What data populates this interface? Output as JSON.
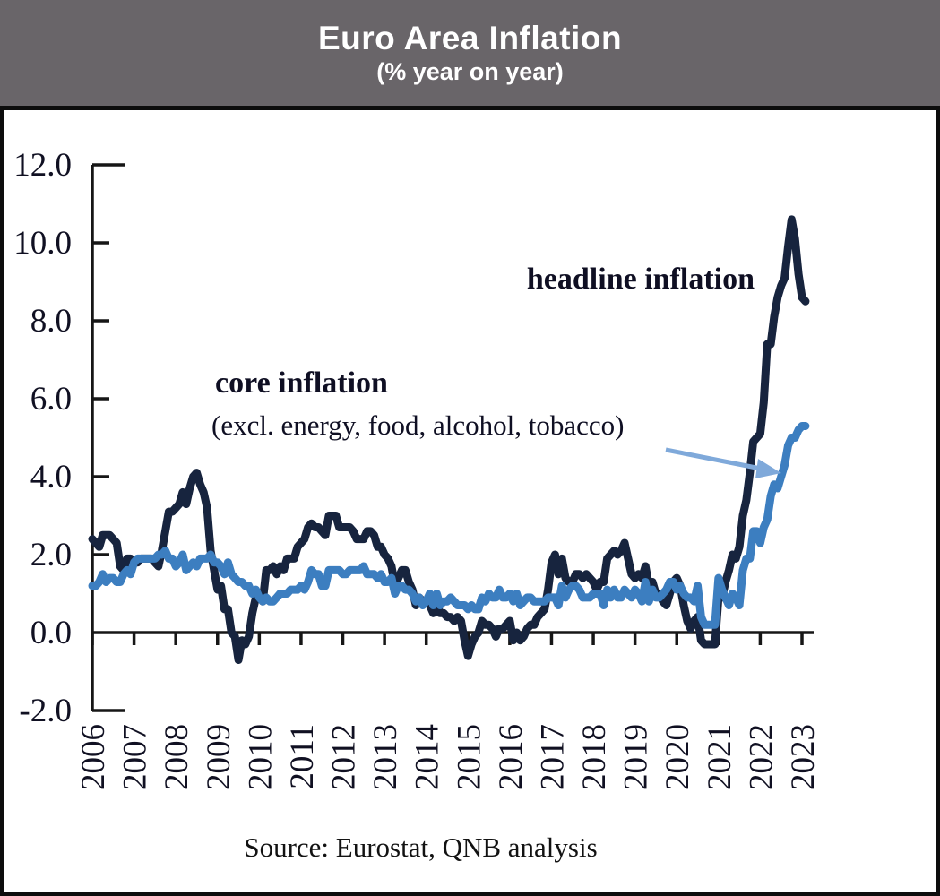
{
  "header": {
    "title": "Euro Area Inflation",
    "subtitle": "(% year on year)"
  },
  "source": "Source: Eurostat, QNB analysis",
  "colors": {
    "header_bg": "#696569",
    "header_text": "#ffffff",
    "frame_border": "#0d0d0d",
    "axis": "#161616",
    "headline": "#17243e",
    "core": "#3c7ec0",
    "arrow": "#7fa9da",
    "label_text": "#101022"
  },
  "chart_data": {
    "type": "line",
    "title": "Euro Area Inflation",
    "subtitle": "(% year on year)",
    "x_unit": "month",
    "x_start": "2006-01",
    "x_end": "2023-02",
    "x_tick_labels": [
      "2006",
      "2007",
      "2008",
      "2009",
      "2010",
      "2011",
      "2012",
      "2013",
      "2014",
      "2015",
      "2016",
      "2017",
      "2018",
      "2019",
      "2020",
      "2021",
      "2022",
      "2023"
    ],
    "y_ticks": [
      12.0,
      10.0,
      8.0,
      6.0,
      4.0,
      2.0,
      0.0,
      -2.0
    ],
    "y_tick_labels": [
      "12.0",
      "10.0",
      "8.0",
      "6.0",
      "4.0",
      "2.0",
      "0.0",
      "-2.0"
    ],
    "ylim": [
      -2.0,
      12.0
    ],
    "grid": false,
    "legend_position": "in-plot-annotations",
    "series": [
      {
        "name": "headline inflation",
        "color": "#17243e",
        "values": [
          2.4,
          2.3,
          2.2,
          2.5,
          2.5,
          2.5,
          2.4,
          2.3,
          1.7,
          1.6,
          1.9,
          1.9,
          1.8,
          1.8,
          1.9,
          1.9,
          1.9,
          1.9,
          1.8,
          1.7,
          2.1,
          2.6,
          3.1,
          3.1,
          3.2,
          3.3,
          3.6,
          3.3,
          3.7,
          4.0,
          4.1,
          3.8,
          3.6,
          3.2,
          2.1,
          1.6,
          1.1,
          1.2,
          0.6,
          0.6,
          0.0,
          -0.1,
          -0.7,
          -0.2,
          -0.3,
          -0.1,
          0.5,
          0.9,
          1.0,
          0.8,
          1.6,
          1.6,
          1.7,
          1.5,
          1.7,
          1.6,
          1.9,
          1.9,
          1.9,
          2.2,
          2.3,
          2.4,
          2.7,
          2.8,
          2.7,
          2.7,
          2.6,
          2.5,
          3.0,
          3.0,
          3.0,
          2.7,
          2.7,
          2.7,
          2.7,
          2.6,
          2.4,
          2.4,
          2.4,
          2.6,
          2.6,
          2.5,
          2.2,
          2.2,
          2.0,
          1.9,
          1.7,
          1.2,
          1.4,
          1.6,
          1.6,
          1.3,
          1.1,
          0.7,
          0.9,
          0.8,
          0.8,
          0.7,
          0.5,
          0.7,
          0.5,
          0.5,
          0.4,
          0.4,
          0.3,
          0.4,
          0.3,
          -0.2,
          -0.6,
          -0.3,
          -0.1,
          0.0,
          0.3,
          0.2,
          0.2,
          0.1,
          -0.1,
          0.1,
          0.1,
          0.2,
          0.3,
          -0.2,
          0.0,
          -0.2,
          -0.1,
          0.1,
          0.2,
          0.2,
          0.4,
          0.5,
          0.6,
          1.1,
          1.8,
          2.0,
          1.5,
          1.9,
          1.4,
          1.3,
          1.3,
          1.5,
          1.5,
          1.4,
          1.5,
          1.4,
          1.3,
          1.1,
          1.3,
          1.3,
          1.9,
          2.0,
          2.1,
          2.0,
          2.1,
          2.3,
          1.9,
          1.5,
          1.4,
          1.5,
          1.4,
          1.7,
          1.2,
          1.3,
          1.0,
          1.0,
          0.8,
          0.7,
          1.0,
          1.3,
          1.4,
          1.2,
          0.7,
          0.3,
          0.1,
          0.3,
          0.4,
          -0.2,
          -0.3,
          -0.3,
          -0.3,
          -0.3,
          0.9,
          0.9,
          1.3,
          1.6,
          2.0,
          1.9,
          2.2,
          3.0,
          3.4,
          4.1,
          4.9,
          5.0,
          5.1,
          5.9,
          7.4,
          7.4,
          8.1,
          8.6,
          8.9,
          9.1,
          9.9,
          10.6,
          10.1,
          9.2,
          8.6,
          8.5
        ]
      },
      {
        "name": "core inflation (excl. energy, food, alcohol, tobacco)",
        "color": "#3c7ec0",
        "values": [
          1.2,
          1.2,
          1.3,
          1.5,
          1.3,
          1.4,
          1.4,
          1.3,
          1.3,
          1.5,
          1.6,
          1.5,
          1.8,
          1.9,
          1.9,
          1.9,
          1.9,
          1.9,
          1.9,
          2.0,
          2.0,
          2.1,
          1.9,
          1.9,
          1.7,
          1.8,
          2.0,
          1.6,
          1.7,
          1.8,
          1.7,
          1.9,
          1.9,
          1.9,
          2.0,
          1.8,
          1.8,
          1.7,
          1.5,
          1.8,
          1.5,
          1.4,
          1.3,
          1.3,
          1.2,
          1.2,
          1.0,
          1.1,
          0.9,
          0.8,
          0.9,
          0.8,
          0.8,
          0.9,
          1.0,
          1.0,
          1.0,
          1.1,
          1.1,
          1.1,
          1.2,
          1.1,
          1.3,
          1.6,
          1.5,
          1.5,
          1.2,
          1.2,
          1.6,
          1.6,
          1.6,
          1.6,
          1.5,
          1.5,
          1.6,
          1.6,
          1.6,
          1.6,
          1.7,
          1.5,
          1.5,
          1.5,
          1.4,
          1.5,
          1.3,
          1.3,
          1.4,
          1.0,
          1.2,
          1.2,
          1.1,
          1.1,
          1.0,
          0.8,
          0.9,
          0.7,
          0.8,
          1.0,
          0.7,
          1.0,
          0.7,
          0.8,
          0.8,
          0.9,
          0.8,
          0.7,
          0.7,
          0.7,
          0.6,
          0.7,
          0.6,
          0.6,
          0.9,
          0.8,
          1.0,
          0.9,
          0.9,
          1.1,
          0.9,
          0.9,
          1.0,
          0.8,
          1.0,
          0.7,
          0.8,
          0.9,
          0.9,
          0.8,
          0.8,
          0.8,
          0.8,
          0.9,
          0.9,
          0.9,
          0.7,
          1.2,
          0.9,
          1.1,
          1.2,
          1.2,
          1.1,
          0.9,
          0.9,
          0.9,
          1.0,
          1.0,
          1.0,
          0.7,
          1.1,
          0.9,
          1.1,
          0.9,
          0.9,
          1.1,
          1.0,
          0.9,
          1.1,
          1.0,
          0.8,
          1.3,
          0.8,
          1.1,
          0.9,
          0.9,
          1.0,
          1.1,
          1.3,
          1.3,
          1.1,
          1.2,
          1.0,
          0.9,
          0.9,
          0.8,
          1.2,
          0.4,
          0.2,
          0.2,
          0.2,
          0.2,
          1.4,
          1.1,
          0.9,
          0.7,
          1.0,
          0.9,
          0.7,
          1.6,
          1.9,
          1.9,
          2.6,
          2.6,
          2.3,
          2.7,
          2.9,
          3.5,
          3.8,
          3.7,
          4.0,
          4.3,
          4.8,
          5.0,
          5.0,
          5.2,
          5.3,
          5.3
        ]
      }
    ],
    "annotations": [
      {
        "id": "headline-label",
        "text": "headline inflation",
        "bold": true
      },
      {
        "id": "core-label",
        "text": "core inflation",
        "bold": true
      },
      {
        "id": "core-sublabel",
        "text": "(excl. energy, food, alcohol, tobacco)",
        "bold": false
      }
    ]
  }
}
